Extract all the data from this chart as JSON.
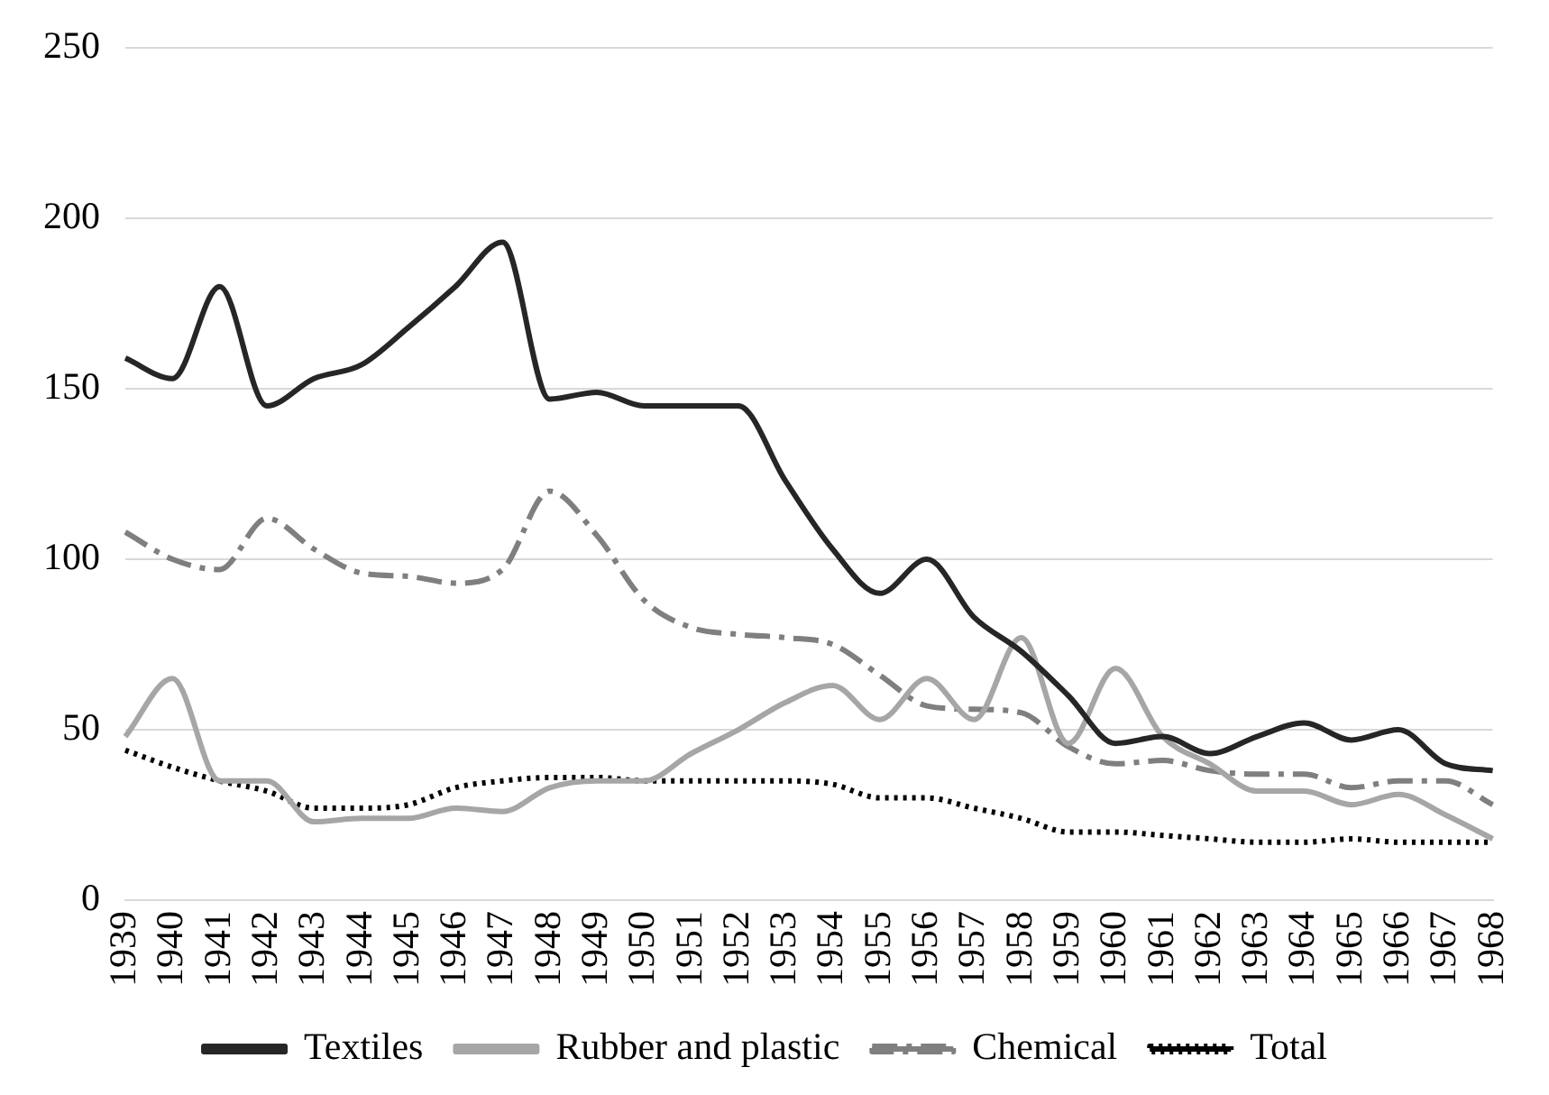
{
  "chart_data": {
    "type": "line",
    "categories": [
      "1939",
      "1940",
      "1941",
      "1942",
      "1943",
      "1944",
      "1945",
      "1946",
      "1947",
      "1948",
      "1949",
      "1950",
      "1951",
      "1952",
      "1953",
      "1954",
      "1955",
      "1956",
      "1957",
      "1958",
      "1959",
      "1960",
      "1961",
      "1962",
      "1963",
      "1964",
      "1965",
      "1966",
      "1967",
      "1968"
    ],
    "series": [
      {
        "name": "Textiles",
        "color": "#262626",
        "line_style": "solid",
        "values": [
          159,
          153,
          180,
          145,
          153,
          157,
          168,
          180,
          193,
          147,
          149,
          145,
          145,
          145,
          123,
          103,
          90,
          100,
          83,
          73,
          60,
          46,
          48,
          43,
          48,
          52,
          47,
          50,
          40,
          38
        ]
      },
      {
        "name": "Rubber and plastic",
        "color": "#a6a6a6",
        "line_style": "solid",
        "values": [
          48,
          65,
          35,
          35,
          23,
          24,
          24,
          27,
          26,
          33,
          35,
          35,
          43,
          50,
          58,
          63,
          53,
          65,
          53,
          77,
          46,
          68,
          48,
          40,
          32,
          32,
          28,
          31,
          25,
          18
        ]
      },
      {
        "name": "Chemical",
        "color": "#7f7f7f",
        "line_style": "dashed",
        "values": [
          108,
          100,
          97,
          112,
          103,
          96,
          95,
          93,
          97,
          120,
          107,
          88,
          80,
          78,
          77,
          75,
          66,
          57,
          56,
          55,
          45,
          40,
          41,
          38,
          37,
          37,
          33,
          35,
          35,
          28
        ]
      },
      {
        "name": "Total",
        "color": "#000000",
        "line_style": "dotted",
        "values": [
          44,
          39,
          35,
          32,
          27,
          27,
          28,
          33,
          35,
          36,
          36,
          35,
          35,
          35,
          35,
          34,
          30,
          30,
          27,
          24,
          20,
          20,
          19,
          18,
          17,
          17,
          18,
          17,
          17,
          17
        ]
      }
    ],
    "ylim": [
      0,
      250
    ],
    "yticks": [
      0,
      50,
      100,
      150,
      200,
      250
    ],
    "grid": "y",
    "legend": "bottom",
    "marker": "none"
  }
}
